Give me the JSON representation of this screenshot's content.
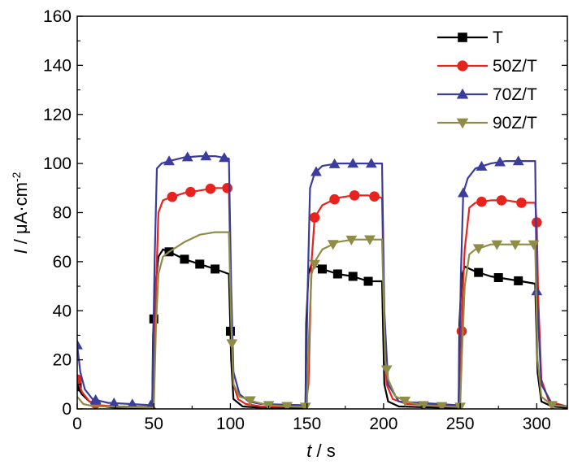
{
  "chart_data": {
    "type": "line",
    "title": "",
    "xlabel": {
      "var": "t",
      "sep": " / ",
      "unit": "s"
    },
    "ylabel": {
      "var": "I",
      "sep": " / ",
      "unit": "μA·cm",
      "unit_sup": "-2"
    },
    "xlim": [
      0,
      320
    ],
    "ylim": [
      0,
      160
    ],
    "xticks": [
      0,
      50,
      100,
      150,
      200,
      250,
      300
    ],
    "yticks": [
      0,
      20,
      40,
      60,
      80,
      100,
      120,
      140,
      160
    ],
    "grid": false,
    "legend_position": "top-right",
    "series": [
      {
        "name": "T",
        "color": "#000000",
        "marker": "square",
        "points": [
          [
            0,
            9
          ],
          [
            3,
            6
          ],
          [
            8,
            3
          ],
          [
            15,
            1.2
          ],
          [
            25,
            0.5
          ],
          [
            49,
            0.3
          ],
          [
            49.5,
            30
          ],
          [
            51,
            50
          ],
          [
            53,
            62
          ],
          [
            56,
            65
          ],
          [
            60,
            64
          ],
          [
            70,
            61
          ],
          [
            80,
            59
          ],
          [
            90,
            57
          ],
          [
            99,
            55
          ],
          [
            100.5,
            20
          ],
          [
            102,
            4
          ],
          [
            108,
            1
          ],
          [
            120,
            0.5
          ],
          [
            149,
            0.3
          ],
          [
            149.5,
            35
          ],
          [
            151,
            55
          ],
          [
            153,
            59
          ],
          [
            160,
            57
          ],
          [
            170,
            55
          ],
          [
            180,
            54
          ],
          [
            190,
            52
          ],
          [
            199,
            52
          ],
          [
            200.5,
            10
          ],
          [
            203,
            3
          ],
          [
            210,
            1
          ],
          [
            249,
            0.3
          ],
          [
            249.5,
            35
          ],
          [
            251,
            54
          ],
          [
            253,
            58
          ],
          [
            260,
            56
          ],
          [
            270,
            54
          ],
          [
            280,
            53
          ],
          [
            290,
            52
          ],
          [
            299,
            51
          ],
          [
            300.5,
            15
          ],
          [
            303,
            3
          ],
          [
            310,
            1
          ],
          [
            320,
            0.5
          ]
        ],
        "markers_x": [
          0,
          50,
          60,
          70,
          80,
          90,
          100,
          160,
          170,
          180,
          190,
          262,
          275,
          288
        ]
      },
      {
        "name": "50Z/T",
        "color": "#e8231d",
        "marker": "circle",
        "points": [
          [
            0,
            12
          ],
          [
            3,
            7
          ],
          [
            8,
            3
          ],
          [
            15,
            1.5
          ],
          [
            25,
            1
          ],
          [
            49,
            0.8
          ],
          [
            50,
            5
          ],
          [
            51.5,
            50
          ],
          [
            53,
            80
          ],
          [
            56,
            85
          ],
          [
            60,
            86
          ],
          [
            70,
            88
          ],
          [
            80,
            89
          ],
          [
            90,
            90
          ],
          [
            99,
            90
          ],
          [
            100.5,
            40
          ],
          [
            102,
            10
          ],
          [
            105,
            4
          ],
          [
            110,
            2
          ],
          [
            120,
            1
          ],
          [
            149,
            0.8
          ],
          [
            151,
            10
          ],
          [
            153,
            60
          ],
          [
            155,
            78
          ],
          [
            160,
            83
          ],
          [
            170,
            86
          ],
          [
            180,
            87
          ],
          [
            190,
            87
          ],
          [
            199,
            86
          ],
          [
            200.5,
            35
          ],
          [
            202,
            10
          ],
          [
            206,
            4
          ],
          [
            215,
            2
          ],
          [
            249,
            1
          ],
          [
            250,
            5
          ],
          [
            251.5,
            45
          ],
          [
            253,
            65
          ],
          [
            256,
            82
          ],
          [
            260,
            84
          ],
          [
            270,
            85
          ],
          [
            280,
            85
          ],
          [
            290,
            84
          ],
          [
            299,
            84
          ],
          [
            300,
            76
          ],
          [
            301,
            45
          ],
          [
            303,
            12
          ],
          [
            308,
            3
          ],
          [
            320,
            1
          ]
        ],
        "markers_x": [
          0,
          12,
          62,
          74,
          87,
          98,
          155,
          168,
          181,
          194,
          251,
          264,
          277,
          290,
          300
        ]
      },
      {
        "name": "70Z/T",
        "color": "#3b3c9c",
        "marker": "triangle-up",
        "points": [
          [
            0,
            26
          ],
          [
            2,
            15
          ],
          [
            5,
            8
          ],
          [
            10,
            4
          ],
          [
            20,
            2.5
          ],
          [
            35,
            2
          ],
          [
            49,
            1.5
          ],
          [
            50.5,
            60
          ],
          [
            52,
            98
          ],
          [
            55,
            100
          ],
          [
            60,
            101
          ],
          [
            70,
            102.5
          ],
          [
            80,
            103
          ],
          [
            90,
            103
          ],
          [
            99,
            102
          ],
          [
            100.5,
            50
          ],
          [
            102,
            15
          ],
          [
            106,
            6
          ],
          [
            112,
            3
          ],
          [
            120,
            2
          ],
          [
            149,
            1.5
          ],
          [
            150.5,
            50
          ],
          [
            152,
            90
          ],
          [
            155,
            96
          ],
          [
            160,
            99
          ],
          [
            170,
            100
          ],
          [
            180,
            100
          ],
          [
            190,
            100
          ],
          [
            199,
            100
          ],
          [
            200.5,
            40
          ],
          [
            203,
            10
          ],
          [
            210,
            3
          ],
          [
            249,
            1.5
          ],
          [
            250.5,
            55
          ],
          [
            252,
            88
          ],
          [
            255,
            94
          ],
          [
            260,
            98
          ],
          [
            270,
            100
          ],
          [
            280,
            101
          ],
          [
            290,
            101
          ],
          [
            299,
            101
          ],
          [
            300,
            48
          ],
          [
            303,
            10
          ],
          [
            310,
            2
          ],
          [
            320,
            1
          ]
        ],
        "markers_x": [
          0,
          12,
          24,
          36,
          48,
          60,
          72,
          84,
          96,
          156,
          168,
          180,
          192,
          252,
          264,
          276,
          288,
          300
        ]
      },
      {
        "name": "90Z/T",
        "color": "#8e8c46",
        "marker": "triangle-down",
        "points": [
          [
            0,
            5
          ],
          [
            4,
            2
          ],
          [
            10,
            1.2
          ],
          [
            30,
            0.8
          ],
          [
            50,
            0.5
          ],
          [
            51.5,
            35
          ],
          [
            53,
            55
          ],
          [
            56,
            62
          ],
          [
            60,
            64
          ],
          [
            70,
            68
          ],
          [
            80,
            71
          ],
          [
            90,
            72
          ],
          [
            99,
            72
          ],
          [
            100.5,
            35
          ],
          [
            102,
            10
          ],
          [
            106,
            5
          ],
          [
            115,
            3
          ],
          [
            125,
            1.5
          ],
          [
            140,
            1
          ],
          [
            150,
            0.8
          ],
          [
            151,
            25
          ],
          [
            153,
            55
          ],
          [
            156,
            61
          ],
          [
            160,
            65
          ],
          [
            170,
            68
          ],
          [
            180,
            69
          ],
          [
            190,
            69
          ],
          [
            199,
            69
          ],
          [
            201,
            20
          ],
          [
            203,
            12
          ],
          [
            208,
            5
          ],
          [
            215,
            3
          ],
          [
            225,
            1.5
          ],
          [
            240,
            1
          ],
          [
            250,
            0.8
          ],
          [
            251,
            20
          ],
          [
            253,
            50
          ],
          [
            256,
            63
          ],
          [
            260,
            65
          ],
          [
            270,
            67
          ],
          [
            280,
            67
          ],
          [
            290,
            67
          ],
          [
            299,
            67
          ],
          [
            300.5,
            20
          ],
          [
            303,
            5
          ],
          [
            310,
            1.5
          ],
          [
            320,
            1
          ]
        ],
        "markers_x": [
          101,
          113,
          125,
          137,
          149,
          155,
          167,
          179,
          191,
          202,
          214,
          226,
          238,
          250,
          262,
          274,
          286,
          298,
          310
        ]
      }
    ]
  }
}
